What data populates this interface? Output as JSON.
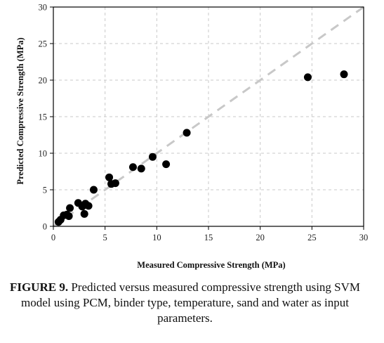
{
  "chart_data": {
    "type": "scatter",
    "title": "",
    "xlabel": "Measured Compressive Strength (MPa)",
    "ylabel": "Predicted Compressive Strength (MPa)",
    "xlim": [
      0,
      30
    ],
    "ylim": [
      0,
      30
    ],
    "xticks": [
      0,
      5,
      10,
      15,
      20,
      25,
      30
    ],
    "yticks": [
      0,
      5,
      10,
      15,
      20,
      25,
      30
    ],
    "grid": true,
    "reference_line": {
      "from": [
        0,
        0
      ],
      "to": [
        30,
        30
      ],
      "style": "dashed"
    },
    "series": [
      {
        "points": [
          [
            0.5,
            0.6
          ],
          [
            0.7,
            0.9
          ],
          [
            1.0,
            1.5
          ],
          [
            1.3,
            1.6
          ],
          [
            1.5,
            1.4
          ],
          [
            1.6,
            2.5
          ],
          [
            2.4,
            3.2
          ],
          [
            2.8,
            2.7
          ],
          [
            3.0,
            1.7
          ],
          [
            3.1,
            3.1
          ],
          [
            3.4,
            2.8
          ],
          [
            3.9,
            5.0
          ],
          [
            5.4,
            6.7
          ],
          [
            5.6,
            5.8
          ],
          [
            6.0,
            5.9
          ],
          [
            7.7,
            8.1
          ],
          [
            8.5,
            7.9
          ],
          [
            9.6,
            9.5
          ],
          [
            10.9,
            8.5
          ],
          [
            12.9,
            12.8
          ],
          [
            24.6,
            20.4
          ],
          [
            28.1,
            20.8
          ]
        ]
      }
    ],
    "colors": {
      "points": "#000000",
      "reference_line": "#c8c8c8",
      "grid": "#c8c8c8"
    }
  },
  "caption": {
    "lead": "FIGURE 9.",
    "body": "Predicted versus measured compressive strength using SVM model using PCM, binder type, temperature, sand and water as input parameters."
  }
}
